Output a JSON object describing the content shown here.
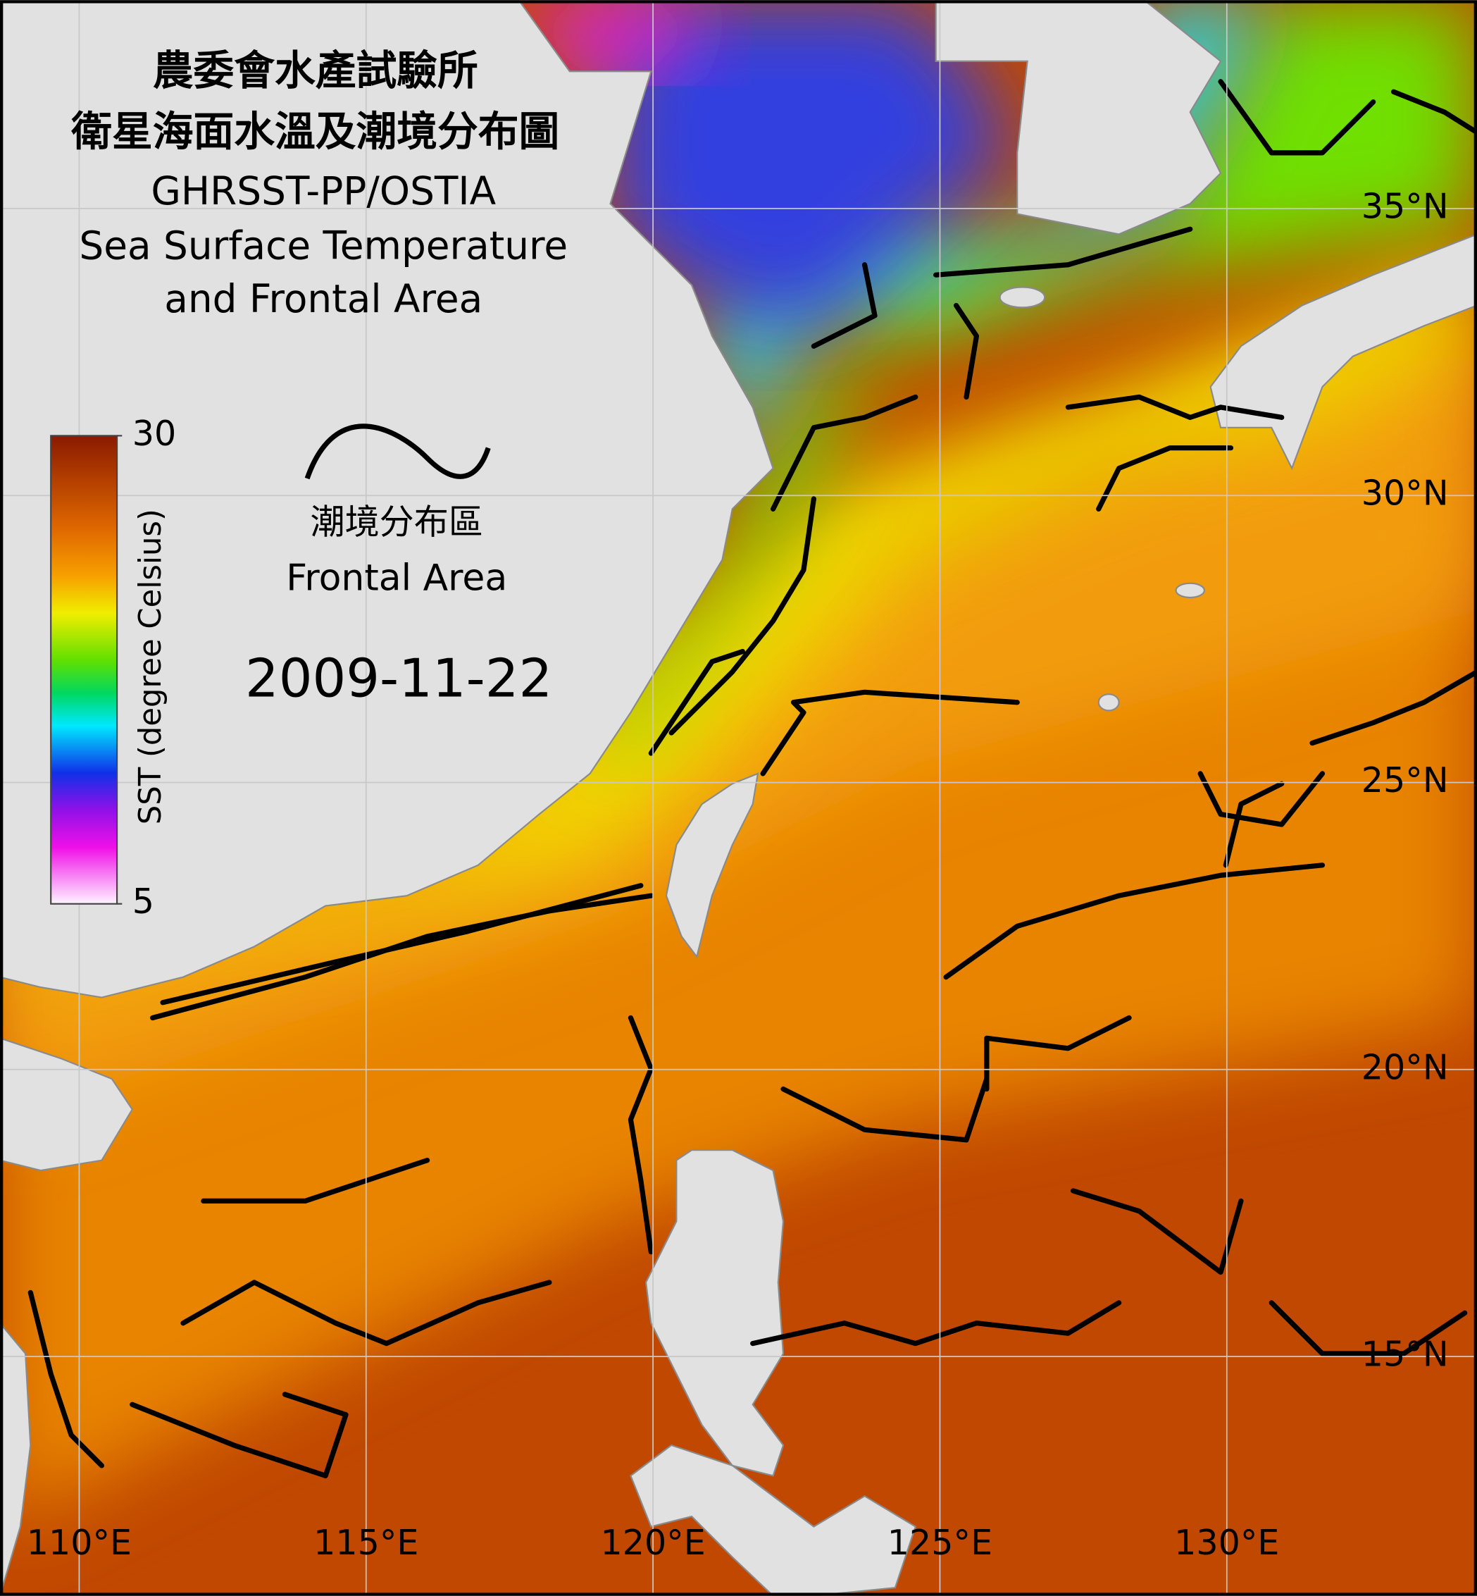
{
  "title": {
    "lines": [
      "農委會水產試驗所",
      "衛星海面水溫及潮境分布圖",
      "GHRSST-PP/OSTIA",
      "Sea Surface Temperature",
      "and Frontal Area"
    ]
  },
  "colorbar": {
    "label": "SST (degree Celsius)",
    "lim": [
      5,
      30
    ],
    "ticks": [
      5,
      30
    ]
  },
  "legend": {
    "label_zh": "潮境分布區",
    "label_en": "Frontal Area"
  },
  "date": "2009-11-22",
  "map": {
    "lon_range": [
      108.62,
      134.36
    ],
    "lat_range": [
      10.83,
      38.63
    ],
    "grid": true,
    "lon_ticks": [
      {
        "value": 110,
        "label": "110°E"
      },
      {
        "value": 115,
        "label": "115°E"
      },
      {
        "value": 120,
        "label": "120°E"
      },
      {
        "value": 125,
        "label": "125°E"
      },
      {
        "value": 130,
        "label": "130°E"
      }
    ],
    "lat_ticks": [
      {
        "value": 15,
        "label": "15°N"
      },
      {
        "value": 20,
        "label": "20°N"
      },
      {
        "value": 25,
        "label": "25°N"
      },
      {
        "value": 30,
        "label": "30°N"
      },
      {
        "value": 35,
        "label": "35°N"
      }
    ]
  }
}
